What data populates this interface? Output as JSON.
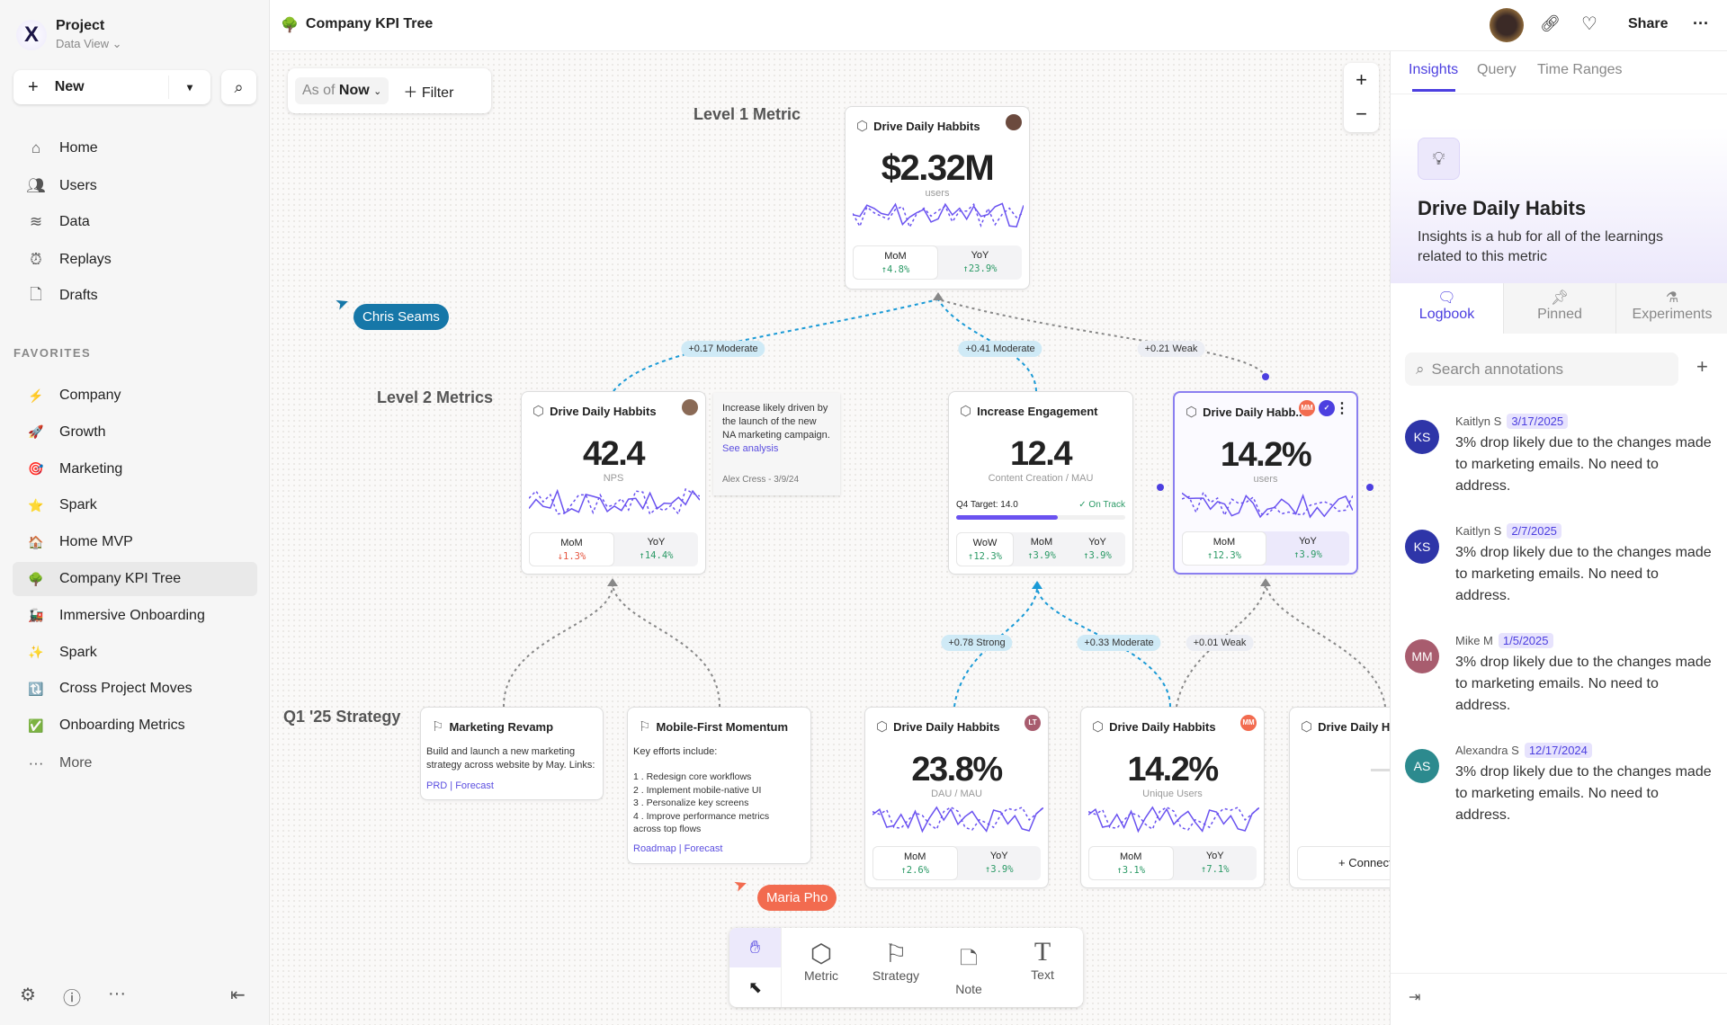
{
  "sidebar": {
    "project": "Project",
    "view": "Data View",
    "new_label": "New",
    "nav": [
      {
        "label": "Home",
        "icon": "home-icon"
      },
      {
        "label": "Users",
        "icon": "users-icon"
      },
      {
        "label": "Data",
        "icon": "database-icon"
      },
      {
        "label": "Replays",
        "icon": "alarm-icon"
      },
      {
        "label": "Drafts",
        "icon": "file-icon"
      }
    ],
    "favorites_header": "FAVORITES",
    "favorites": [
      {
        "label": "Company",
        "icon": "⚡"
      },
      {
        "label": "Growth",
        "icon": "🚀"
      },
      {
        "label": "Marketing",
        "icon": "🎯"
      },
      {
        "label": "Spark",
        "icon": "⭐"
      },
      {
        "label": "Home MVP",
        "icon": "🏠"
      },
      {
        "label": "Company KPI Tree",
        "icon": "🌳",
        "active": true
      },
      {
        "label": "Immersive Onboarding",
        "icon": "🚂"
      },
      {
        "label": "Spark",
        "icon": "✨"
      },
      {
        "label": "Cross Project Moves",
        "icon": "🔃"
      },
      {
        "label": "Onboarding Metrics",
        "icon": "✅"
      }
    ],
    "more": "More"
  },
  "header": {
    "title": "Company KPI Tree",
    "icon": "🌳",
    "share": "Share"
  },
  "canvas": {
    "filter": {
      "as_of": "As of",
      "now": "Now",
      "filter": "Filter"
    },
    "levels": {
      "l1": "Level 1 Metric",
      "l2": "Level 2 Metrics",
      "q1": "Q1 '25 Strategy"
    },
    "l1": {
      "title": "Drive Daily Habbits",
      "value": "$2.32M",
      "unit": "users",
      "stats": [
        {
          "k": "MoM",
          "v": "↑4.8%"
        },
        {
          "k": "YoY",
          "v": "↑23.9%"
        }
      ]
    },
    "l2a": {
      "title": "Drive Daily Habbits",
      "value": "42.4",
      "unit": "NPS",
      "stats": [
        {
          "k": "MoM",
          "v": "↓1.3%"
        },
        {
          "k": "YoY",
          "v": "↑14.4%"
        }
      ]
    },
    "note": {
      "text": "Increase likely driven by the launch of the new NA marketing campaign.",
      "link": "See analysis",
      "author": "Alex Cress - 3/9/24"
    },
    "l2b": {
      "title": "Increase Engagement",
      "value": "12.4",
      "unit": "Content Creation / MAU",
      "target": "Q4 Target: 14.0",
      "target_progress": 0.6,
      "status": "✓ On Track",
      "stats": [
        {
          "k": "WoW",
          "v": "↑12.3%"
        },
        {
          "k": "MoM",
          "v": "↑3.9%"
        },
        {
          "k": "YoY",
          "v": "↑3.9%"
        }
      ]
    },
    "l2c": {
      "title": "Drive Daily Habb..",
      "avatar": "MM",
      "value": "14.2%",
      "unit": "users",
      "stats": [
        {
          "k": "MoM",
          "v": "↑12.3%"
        },
        {
          "k": "YoY",
          "v": "↑3.9%"
        }
      ]
    },
    "s1": {
      "title": "Marketing Revamp",
      "text": "Build and launch a new marketing strategy across website by May. Links:",
      "links": "PRD | Forecast"
    },
    "s2": {
      "title": "Mobile-First Momentum",
      "intro": "Key efforts include:",
      "items": [
        "1 .  Redesign core workflows",
        "2 .  Implement mobile-native UI",
        "3 .  Personalize key screens",
        "4 .  Improve performance metrics across top flows"
      ],
      "links": "Roadmap | Forecast"
    },
    "l3a": {
      "title": "Drive Daily Habbits",
      "avatar": "LT",
      "value": "23.8%",
      "unit": "DAU / MAU",
      "stats": [
        {
          "k": "MoM",
          "v": "↑2.6%"
        },
        {
          "k": "YoY",
          "v": "↑3.9%"
        }
      ]
    },
    "l3b": {
      "title": "Drive Daily Habbits",
      "avatar": "MM",
      "value": "14.2%",
      "unit": "Unique Users",
      "stats": [
        {
          "k": "MoM",
          "v": "↑3.1%"
        },
        {
          "k": "YoY",
          "v": "↑7.1%"
        }
      ]
    },
    "l3c": {
      "title": "Drive Daily Habbits",
      "connect": "+ Connect"
    },
    "edges": {
      "e1": "+0.17 Moderate",
      "e2": "+0.41 Moderate",
      "e3": "+0.21 Weak",
      "e4": "+0.78 Strong",
      "e5": "+0.33 Moderate",
      "e6": "+0.01 Weak"
    },
    "cursors": {
      "chris": "Chris Seams",
      "maria": "Maria Pho"
    },
    "toolbar": {
      "metric": "Metric",
      "strategy": "Strategy",
      "note": "Note",
      "text": "Text"
    }
  },
  "right": {
    "tabs": [
      "Insights",
      "Query",
      "Time Ranges"
    ],
    "hero_title": "Drive Daily Habits",
    "hero_desc": "Insights is a hub for all of the learnings related to this metric",
    "subtabs": [
      "Logbook",
      "Pinned",
      "Experiments"
    ],
    "search_placeholder": "Search annotations",
    "annotations": [
      {
        "initials": "KS",
        "name": "Kaitlyn S",
        "date": "3/17/2025",
        "text": "3% drop likely due to the changes made to marketing emails. No need to address.",
        "color": "#2e35a8"
      },
      {
        "initials": "KS",
        "name": "Kaitlyn S",
        "date": "2/7/2025",
        "text": "3% drop likely due to the changes made to marketing emails. No need to address.",
        "color": "#2e35a8"
      },
      {
        "initials": "MM",
        "name": "Mike M",
        "date": "1/5/2025",
        "text": "3% drop likely due to the changes made to marketing emails. No need to address.",
        "color": "#a85c6e"
      },
      {
        "initials": "AS",
        "name": "Alexandra S",
        "date": "12/17/2024",
        "text": "3% drop likely due to the changes made to marketing emails. No need to address.",
        "color": "#2c8a8e"
      }
    ]
  },
  "colors": {
    "accent": "#4c3fe0",
    "positive": "#2b9a66",
    "negative": "#e5533d",
    "chris": "#1677a8",
    "maria": "#f26b4f"
  }
}
